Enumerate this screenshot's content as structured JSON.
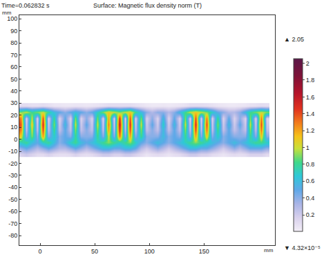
{
  "chart_data": {
    "type": "heatmap",
    "title": "Surface: Magnetic flux density norm (T)",
    "subtitle": "Time=0.062832 s",
    "xlabel": "mm",
    "ylabel": "mm",
    "xlim": [
      -19,
      215
    ],
    "ylim": [
      -88,
      103
    ],
    "xticks": [
      0,
      50,
      100,
      150
    ],
    "yticks": [
      -80,
      -70,
      -60,
      -50,
      -40,
      -30,
      -20,
      -10,
      0,
      10,
      20,
      30,
      40,
      50,
      60,
      70,
      80,
      90,
      100
    ],
    "grid": false,
    "x": [
      -17.5,
      -12.5,
      -7.5,
      -2.5,
      2.5,
      7.5,
      12.5,
      17.5,
      22.5,
      27.5,
      32.5,
      37.5,
      42.5,
      47.5,
      52.5,
      57.5,
      62.5,
      67.5,
      72.5,
      77.5,
      82.5,
      87.5,
      92.5,
      97.5,
      102.5,
      107.5,
      112.5,
      117.5,
      122.5,
      127.5,
      132.5,
      137.5,
      142.5,
      147.5,
      152.5,
      157.5,
      162.5,
      167.5,
      172.5,
      177.5,
      182.5,
      187.5,
      192.5,
      197.5,
      202.5,
      207.5
    ],
    "y": [
      -12.5,
      -7.5,
      -2.5,
      2.5,
      7.5,
      12.5,
      17.5,
      22.5,
      27.5
    ],
    "z": [
      [
        0.15,
        0.2,
        0.15,
        0.1,
        0.1,
        0.15,
        0.1,
        0.08,
        0.08,
        0.1,
        0.15,
        0.1,
        0.08,
        0.1,
        0.15,
        0.2,
        0.2,
        0.15,
        0.15,
        0.2,
        0.2,
        0.15,
        0.1,
        0.05,
        0.08,
        0.1,
        0.08,
        0.05,
        0.08,
        0.1,
        0.15,
        0.2,
        0.2,
        0.15,
        0.15,
        0.1,
        0.08,
        0.05,
        0.08,
        0.1,
        0.08,
        0.1,
        0.15,
        0.15,
        0.15,
        0.1
      ],
      [
        0.4,
        0.5,
        0.4,
        0.3,
        0.4,
        0.5,
        0.4,
        0.3,
        0.3,
        0.4,
        0.5,
        0.4,
        0.3,
        0.4,
        0.5,
        0.6,
        0.6,
        0.5,
        0.5,
        0.6,
        0.6,
        0.5,
        0.3,
        0.2,
        0.3,
        0.4,
        0.3,
        0.2,
        0.3,
        0.4,
        0.5,
        0.6,
        0.6,
        0.5,
        0.5,
        0.4,
        0.3,
        0.2,
        0.3,
        0.4,
        0.3,
        0.4,
        0.5,
        0.5,
        0.5,
        0.4
      ],
      [
        0.7,
        0.8,
        0.6,
        0.5,
        0.7,
        0.8,
        0.6,
        0.4,
        0.5,
        0.7,
        0.8,
        0.6,
        0.5,
        0.6,
        0.7,
        0.8,
        0.9,
        0.8,
        0.7,
        0.8,
        0.9,
        0.7,
        0.5,
        0.4,
        0.5,
        0.6,
        0.5,
        0.4,
        0.5,
        0.6,
        0.7,
        0.8,
        0.9,
        0.8,
        0.7,
        0.6,
        0.5,
        0.4,
        0.5,
        0.6,
        0.5,
        0.6,
        0.7,
        0.8,
        0.8,
        0.7
      ],
      [
        1.1,
        0.4,
        0.9,
        0.4,
        1.2,
        0.4,
        0.7,
        0.4,
        0.5,
        0.4,
        0.8,
        0.4,
        0.4,
        0.4,
        0.8,
        0.4,
        1.0,
        0.4,
        1.3,
        0.4,
        1.2,
        0.4,
        0.8,
        0.4,
        0.4,
        0.4,
        0.6,
        0.4,
        0.5,
        0.4,
        0.8,
        0.4,
        1.2,
        0.4,
        1.1,
        0.4,
        0.7,
        0.4,
        0.5,
        0.4,
        0.4,
        0.4,
        0.8,
        0.4,
        1.1,
        0.4
      ],
      [
        1.3,
        0.25,
        1.0,
        0.25,
        1.4,
        0.25,
        0.8,
        0.25,
        0.5,
        0.25,
        0.9,
        0.25,
        0.4,
        0.25,
        0.9,
        0.25,
        1.2,
        0.25,
        1.5,
        0.25,
        1.4,
        0.25,
        0.9,
        0.25,
        0.4,
        0.25,
        0.6,
        0.25,
        0.5,
        0.25,
        0.9,
        0.25,
        1.4,
        0.25,
        1.3,
        0.25,
        0.8,
        0.25,
        0.5,
        0.25,
        0.4,
        0.25,
        0.9,
        0.25,
        1.3,
        0.25
      ],
      [
        1.4,
        0.2,
        1.1,
        0.2,
        1.5,
        0.2,
        0.9,
        0.2,
        0.6,
        0.2,
        1.0,
        0.2,
        0.5,
        0.2,
        1.0,
        0.2,
        1.3,
        0.2,
        1.6,
        0.2,
        1.5,
        0.2,
        1.0,
        0.2,
        0.5,
        0.2,
        0.7,
        0.2,
        0.6,
        0.2,
        1.0,
        0.2,
        1.5,
        0.2,
        1.4,
        0.2,
        0.9,
        0.2,
        0.6,
        0.2,
        0.5,
        0.2,
        1.0,
        0.2,
        1.4,
        0.2
      ],
      [
        1.3,
        0.15,
        1.0,
        0.15,
        1.4,
        0.15,
        0.8,
        0.15,
        0.5,
        0.15,
        0.9,
        0.15,
        0.4,
        0.15,
        0.9,
        0.15,
        1.2,
        0.15,
        1.5,
        0.15,
        1.4,
        0.15,
        0.9,
        0.15,
        0.4,
        0.15,
        0.6,
        0.15,
        0.5,
        0.15,
        0.9,
        0.15,
        1.4,
        0.15,
        1.3,
        0.15,
        0.8,
        0.15,
        0.5,
        0.15,
        0.4,
        0.15,
        0.9,
        0.15,
        1.3,
        0.15
      ],
      [
        0.9,
        1.0,
        0.8,
        0.9,
        1.0,
        0.8,
        0.6,
        0.5,
        0.4,
        0.5,
        0.6,
        0.5,
        0.4,
        0.5,
        0.7,
        0.9,
        1.1,
        1.0,
        0.9,
        1.0,
        1.1,
        0.8,
        0.6,
        0.4,
        0.3,
        0.4,
        0.4,
        0.3,
        0.4,
        0.6,
        0.8,
        1.0,
        1.1,
        1.0,
        0.9,
        0.7,
        0.5,
        0.4,
        0.3,
        0.3,
        0.4,
        0.6,
        0.8,
        0.9,
        1.0,
        0.9
      ],
      [
        0.1,
        0.1,
        0.08,
        0.08,
        0.1,
        0.08,
        0.05,
        0.05,
        0.04,
        0.04,
        0.05,
        0.05,
        0.04,
        0.05,
        0.06,
        0.08,
        0.1,
        0.1,
        0.1,
        0.1,
        0.1,
        0.08,
        0.06,
        0.04,
        0.03,
        0.03,
        0.04,
        0.03,
        0.04,
        0.05,
        0.07,
        0.1,
        0.1,
        0.1,
        0.09,
        0.07,
        0.05,
        0.04,
        0.03,
        0.03,
        0.04,
        0.05,
        0.07,
        0.08,
        0.1,
        0.09
      ]
    ],
    "colorbar": {
      "range": [
        {
          "value": 4.32e-05,
          "label": "▼ 4.32×10⁻⁵"
        },
        {
          "value": 2.05,
          "label": "▲ 2.05"
        }
      ],
      "ticks": [
        0.2,
        0.4,
        0.6,
        0.8,
        1,
        1.2,
        1.4,
        1.6,
        1.8,
        2
      ]
    }
  }
}
